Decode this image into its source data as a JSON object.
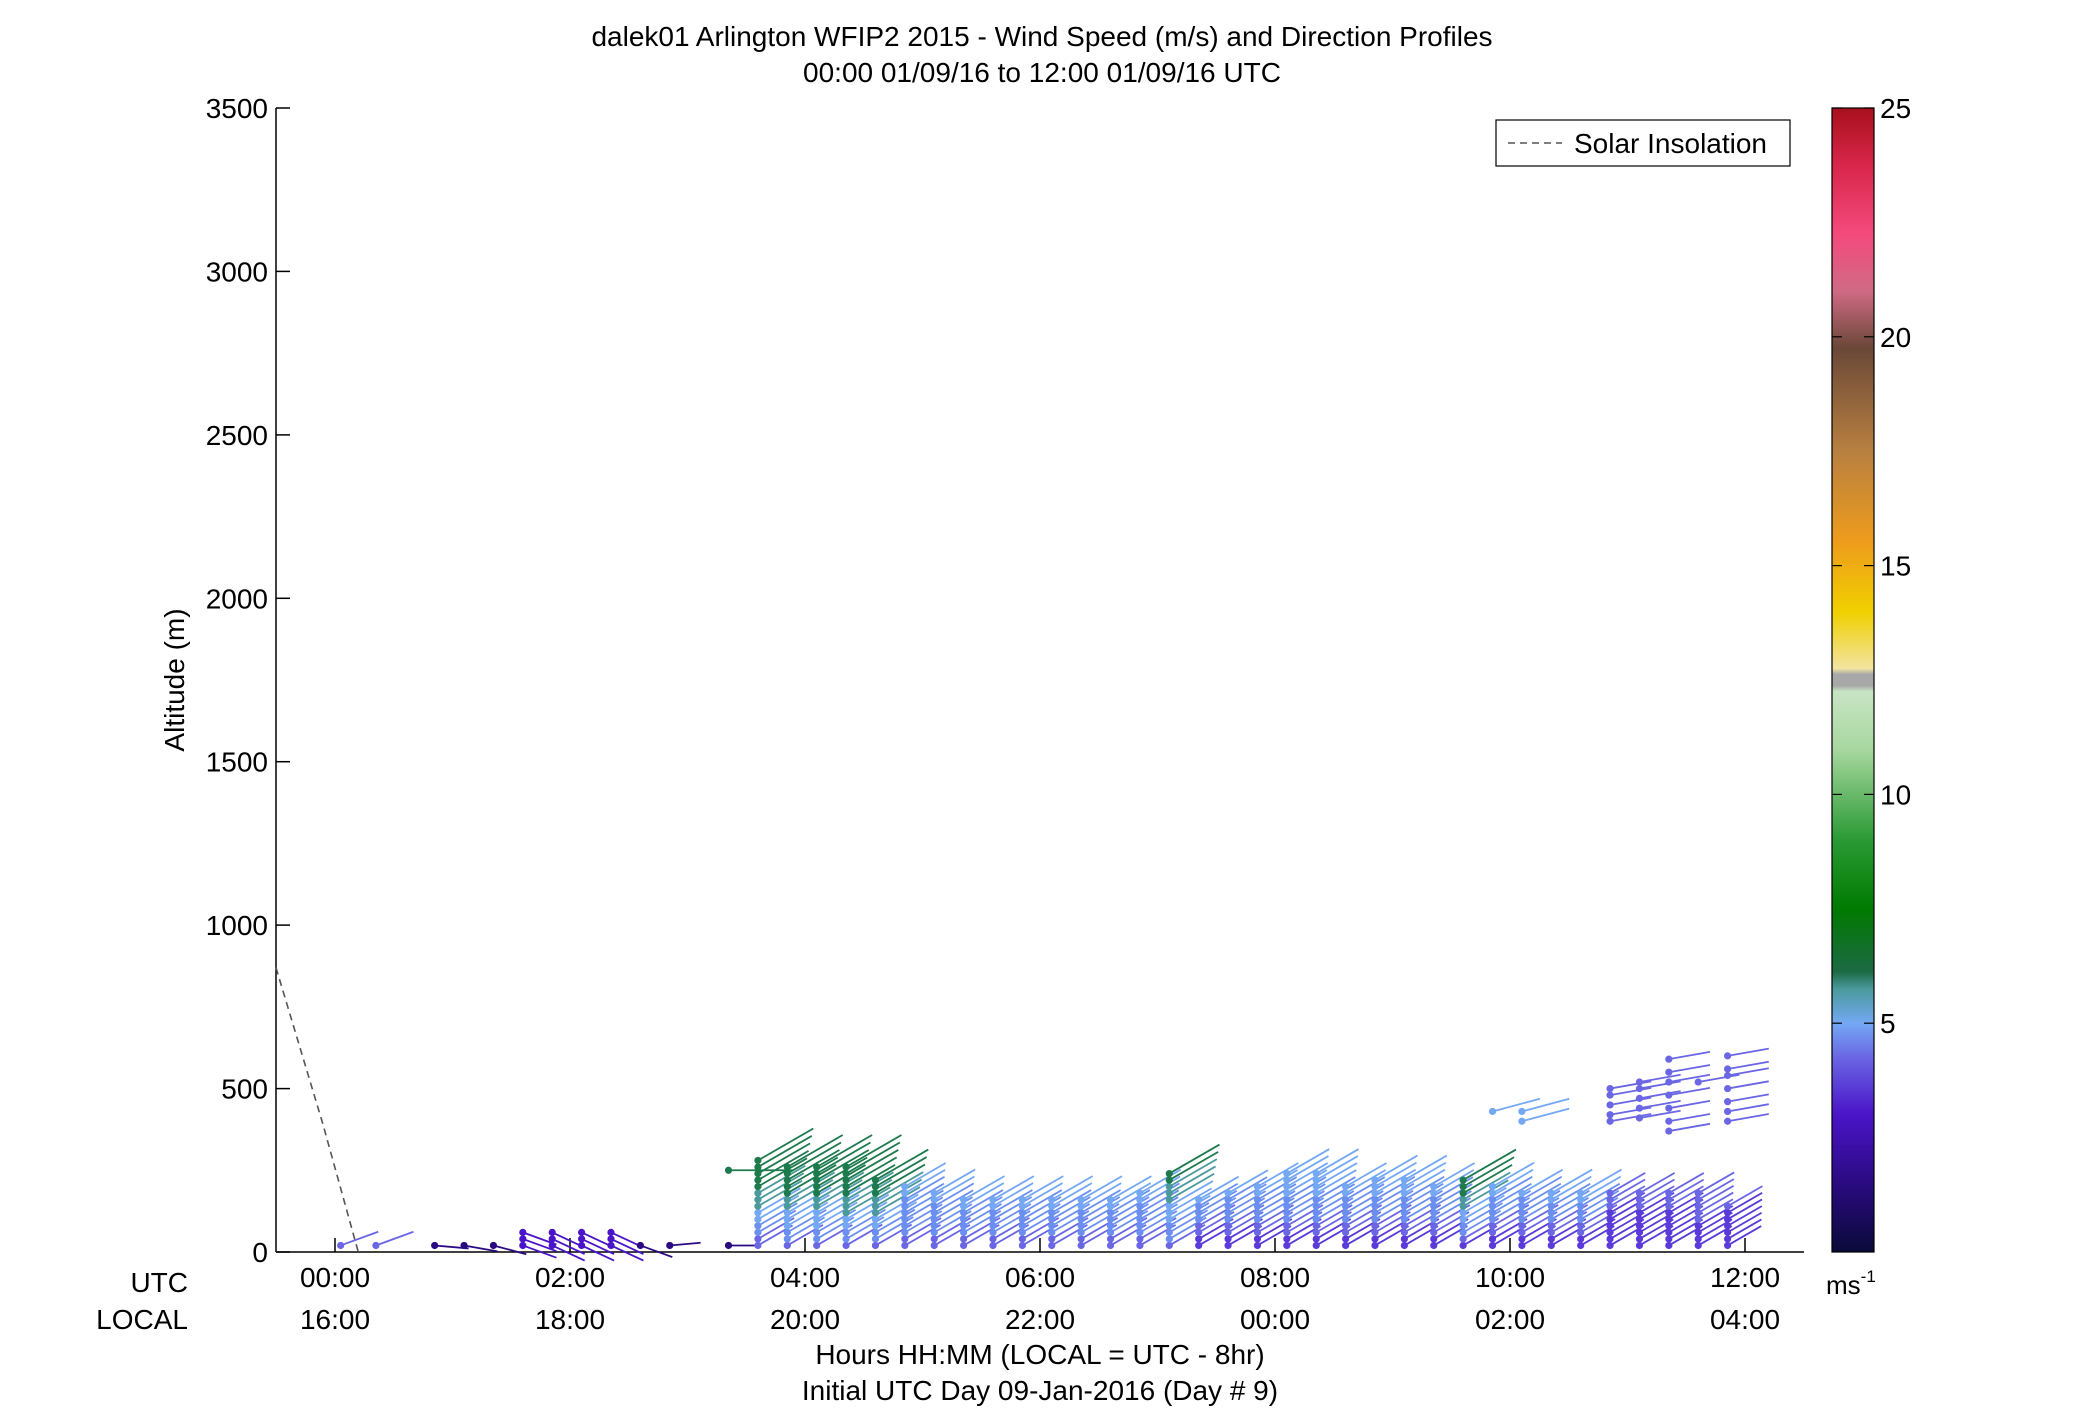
{
  "chart_data": {
    "type": "wind_barb_profile",
    "title": "dalek01 Arlington WFIP2 2015 - Wind Speed (m/s) and Direction Profiles",
    "subtitle": "00:00 01/09/16 to 12:00 01/09/16  UTC",
    "ylabel": "Altitude (m)",
    "ylim": [
      0,
      3500
    ],
    "yticks": [
      "0",
      "500",
      "1000",
      "1500",
      "2000",
      "2500",
      "3000",
      "3500"
    ],
    "xlim": [
      -0.5,
      12.5
    ],
    "x_ticks_utc": [
      "00:00",
      "02:00",
      "04:00",
      "06:00",
      "08:00",
      "10:00",
      "12:00"
    ],
    "x_ticks_local": [
      "16:00",
      "18:00",
      "20:00",
      "22:00",
      "00:00",
      "02:00",
      "04:00"
    ],
    "row_label_utc": "UTC",
    "row_label_local": "LOCAL",
    "xlabel_line1": "Hours HH:MM  (LOCAL = UTC - 8hr)",
    "xlabel_line2": "Initial UTC Day 09-Jan-2016 (Day # 9)",
    "legend": {
      "label": "Solar Insolation",
      "position": "top-right"
    },
    "solar_insolation": [
      [
        -0.5,
        870
      ],
      [
        -0.1,
        390
      ],
      [
        0.2,
        0
      ]
    ],
    "colorbar": {
      "min": 0,
      "max": 25,
      "ticks": [
        "5",
        "10",
        "15",
        "20",
        "25"
      ],
      "units": "ms",
      "units_exp": "-1"
    },
    "profiles": [
      {
        "t": 0.05,
        "heights": [
          20
        ],
        "speed": 3.0,
        "dir": 250,
        "top_speed": 3.0
      },
      {
        "t": 0.35,
        "heights": [
          20
        ],
        "speed": 3.0,
        "dir": 250,
        "top_speed": 3.0
      },
      {
        "t": 0.85,
        "heights": [
          20
        ],
        "speed": 2.0,
        "dir": 275,
        "top_speed": 2.0
      },
      {
        "t": 1.1,
        "heights": [
          20
        ],
        "speed": 2.0,
        "dir": 280,
        "top_speed": 2.0
      },
      {
        "t": 1.35,
        "heights": [
          20
        ],
        "speed": 2.0,
        "dir": 285,
        "top_speed": 2.0
      },
      {
        "t": 1.6,
        "heights": [
          20,
          40,
          60
        ],
        "speed": 2.3,
        "dir": 290,
        "top_speed": 2.3
      },
      {
        "t": 1.85,
        "heights": [
          20,
          40,
          60
        ],
        "speed": 2.3,
        "dir": 295,
        "top_speed": 2.3
      },
      {
        "t": 2.1,
        "heights": [
          20,
          40,
          60
        ],
        "speed": 2.3,
        "dir": 295,
        "top_speed": 2.3
      },
      {
        "t": 2.35,
        "heights": [
          20,
          40,
          60
        ],
        "speed": 2.3,
        "dir": 295,
        "top_speed": 2.3
      },
      {
        "t": 2.6,
        "heights": [
          20
        ],
        "speed": 2.0,
        "dir": 290,
        "top_speed": 2.0
      },
      {
        "t": 2.85,
        "heights": [
          20
        ],
        "speed": 1.5,
        "dir": 265,
        "top_speed": 1.5
      },
      {
        "t": 3.35,
        "heights": [
          20,
          250
        ],
        "speed": 1.5,
        "dir": 270,
        "top_speed": 7.0,
        "top_dir": 240
      },
      {
        "t": 3.6,
        "heights": [
          20,
          40,
          60,
          80,
          100,
          120,
          140,
          160,
          180,
          200,
          220,
          240,
          260,
          280
        ],
        "speed": 3.0,
        "dir": 240,
        "top_speed": 7.0
      },
      {
        "t": 3.85,
        "heights": [
          20,
          40,
          60,
          80,
          100,
          120,
          140,
          160,
          180,
          200,
          220,
          240,
          260
        ],
        "speed": 3.2,
        "dir": 240,
        "top_speed": 7.0
      },
      {
        "t": 4.1,
        "heights": [
          20,
          40,
          60,
          80,
          100,
          120,
          140,
          160,
          180,
          200,
          220,
          240,
          260
        ],
        "speed": 3.2,
        "dir": 240,
        "top_speed": 7.0
      },
      {
        "t": 4.35,
        "heights": [
          20,
          40,
          60,
          80,
          100,
          120,
          140,
          160,
          180,
          200,
          220,
          240,
          260
        ],
        "speed": 3.3,
        "dir": 240,
        "top_speed": 7.0
      },
      {
        "t": 4.6,
        "heights": [
          20,
          40,
          60,
          80,
          100,
          120,
          140,
          160,
          180,
          200,
          220
        ],
        "speed": 3.3,
        "dir": 240,
        "top_speed": 6.5
      },
      {
        "t": 4.85,
        "heights": [
          20,
          40,
          60,
          80,
          100,
          120,
          140,
          160,
          180,
          200
        ],
        "speed": 3.2,
        "dir": 240,
        "top_speed": 4.2
      },
      {
        "t": 5.1,
        "heights": [
          20,
          40,
          60,
          80,
          100,
          120,
          140,
          160,
          180
        ],
        "speed": 3.2,
        "dir": 240,
        "top_speed": 4.2
      },
      {
        "t": 5.35,
        "heights": [
          20,
          40,
          60,
          80,
          100,
          120,
          140,
          160
        ],
        "speed": 3.2,
        "dir": 240,
        "top_speed": 4.2
      },
      {
        "t": 5.6,
        "heights": [
          20,
          40,
          60,
          80,
          100,
          120,
          140,
          160
        ],
        "speed": 3.2,
        "dir": 240,
        "top_speed": 4.2
      },
      {
        "t": 5.85,
        "heights": [
          20,
          40,
          60,
          80,
          100,
          120,
          140,
          160
        ],
        "speed": 3.2,
        "dir": 240,
        "top_speed": 4.2
      },
      {
        "t": 6.1,
        "heights": [
          20,
          40,
          60,
          80,
          100,
          120,
          140,
          160
        ],
        "speed": 3.2,
        "dir": 240,
        "top_speed": 4.2
      },
      {
        "t": 6.35,
        "heights": [
          20,
          40,
          60,
          80,
          100,
          120,
          140,
          160
        ],
        "speed": 3.2,
        "dir": 240,
        "top_speed": 4.2
      },
      {
        "t": 6.6,
        "heights": [
          20,
          40,
          60,
          80,
          100,
          120,
          140,
          160
        ],
        "speed": 3.2,
        "dir": 240,
        "top_speed": 4.2
      },
      {
        "t": 6.85,
        "heights": [
          20,
          40,
          60,
          80,
          100,
          120,
          140,
          160,
          180
        ],
        "speed": 3.2,
        "dir": 240,
        "top_speed": 4.2
      },
      {
        "t": 7.1,
        "heights": [
          20,
          40,
          60,
          80,
          100,
          120,
          140,
          160,
          180,
          200,
          220,
          240
        ],
        "speed": 3.2,
        "dir": 240,
        "top_speed": 6.0
      },
      {
        "t": 7.35,
        "heights": [
          20,
          40,
          60,
          80,
          100,
          120,
          140,
          160
        ],
        "speed": 2.8,
        "dir": 240,
        "top_speed": 4.0
      },
      {
        "t": 7.6,
        "heights": [
          20,
          40,
          60,
          80,
          100,
          120,
          140,
          160,
          180
        ],
        "speed": 2.8,
        "dir": 240,
        "top_speed": 4.0
      },
      {
        "t": 7.85,
        "heights": [
          20,
          40,
          60,
          80,
          100,
          120,
          140,
          160,
          180,
          200
        ],
        "speed": 2.8,
        "dir": 240,
        "top_speed": 4.2
      },
      {
        "t": 8.1,
        "heights": [
          20,
          40,
          60,
          80,
          100,
          120,
          140,
          160,
          180,
          200,
          220,
          240
        ],
        "speed": 2.8,
        "dir": 240,
        "top_speed": 4.5
      },
      {
        "t": 8.35,
        "heights": [
          20,
          40,
          60,
          80,
          100,
          120,
          140,
          160,
          180,
          200,
          220,
          240
        ],
        "speed": 2.8,
        "dir": 240,
        "top_speed": 4.5
      },
      {
        "t": 8.6,
        "heights": [
          20,
          40,
          60,
          80,
          100,
          120,
          140,
          160,
          180,
          200
        ],
        "speed": 2.8,
        "dir": 240,
        "top_speed": 4.2
      },
      {
        "t": 8.85,
        "heights": [
          20,
          40,
          60,
          80,
          100,
          120,
          140,
          160,
          180,
          200,
          220
        ],
        "speed": 2.8,
        "dir": 240,
        "top_speed": 4.5
      },
      {
        "t": 9.1,
        "heights": [
          20,
          40,
          60,
          80,
          100,
          120,
          140,
          160,
          180,
          200,
          220
        ],
        "speed": 2.8,
        "dir": 240,
        "top_speed": 4.5
      },
      {
        "t": 9.35,
        "heights": [
          20,
          40,
          60,
          80,
          100,
          120,
          140,
          160,
          180,
          200
        ],
        "speed": 2.8,
        "dir": 240,
        "top_speed": 4.2
      },
      {
        "t": 9.6,
        "heights": [
          20,
          40,
          60,
          80,
          100,
          120,
          140,
          160,
          180,
          200,
          220
        ],
        "speed": 2.8,
        "dir": 240,
        "top_speed": 6.5
      },
      {
        "t": 9.85,
        "heights": [
          20,
          40,
          60,
          80,
          100,
          120,
          140,
          160,
          180,
          200,
          430
        ],
        "speed": 2.8,
        "dir": 240,
        "top_speed": 4.5,
        "top_dir": 255
      },
      {
        "t": 10.1,
        "heights": [
          20,
          40,
          60,
          80,
          100,
          120,
          140,
          160,
          180,
          400,
          430
        ],
        "speed": 2.8,
        "dir": 240,
        "top_speed": 4.5,
        "top_dir": 255
      },
      {
        "t": 10.35,
        "heights": [
          20,
          40,
          60,
          80,
          100,
          120,
          140,
          160,
          180
        ],
        "speed": 2.8,
        "dir": 240,
        "top_speed": 4.2
      },
      {
        "t": 10.6,
        "heights": [
          20,
          40,
          60,
          80,
          100,
          120,
          140,
          160,
          180
        ],
        "speed": 2.8,
        "dir": 240,
        "top_speed": 4.2
      },
      {
        "t": 10.85,
        "heights": [
          20,
          40,
          60,
          80,
          100,
          120,
          140,
          160,
          180,
          400,
          420,
          450,
          480,
          500
        ],
        "speed": 2.8,
        "dir": 240,
        "top_speed": 3.3,
        "top_dir": 260
      },
      {
        "t": 11.1,
        "heights": [
          20,
          40,
          60,
          80,
          100,
          120,
          140,
          160,
          180,
          410,
          440,
          470,
          500,
          520
        ],
        "speed": 2.8,
        "dir": 240,
        "top_speed": 3.3,
        "top_dir": 260
      },
      {
        "t": 11.35,
        "heights": [
          20,
          40,
          60,
          80,
          100,
          120,
          140,
          160,
          180,
          370,
          400,
          440,
          480,
          520,
          550,
          590
        ],
        "speed": 2.8,
        "dir": 240,
        "top_speed": 3.3,
        "top_dir": 260
      },
      {
        "t": 11.6,
        "heights": [
          20,
          40,
          60,
          80,
          100,
          120,
          140,
          160,
          180,
          520
        ],
        "speed": 2.8,
        "dir": 240,
        "top_speed": 3.3,
        "top_dir": 260
      },
      {
        "t": 11.85,
        "heights": [
          20,
          40,
          60,
          80,
          100,
          120,
          140,
          400,
          430,
          460,
          500,
          540,
          560,
          600
        ],
        "speed": 2.8,
        "dir": 240,
        "top_speed": 3.3,
        "top_dir": 260
      }
    ]
  }
}
